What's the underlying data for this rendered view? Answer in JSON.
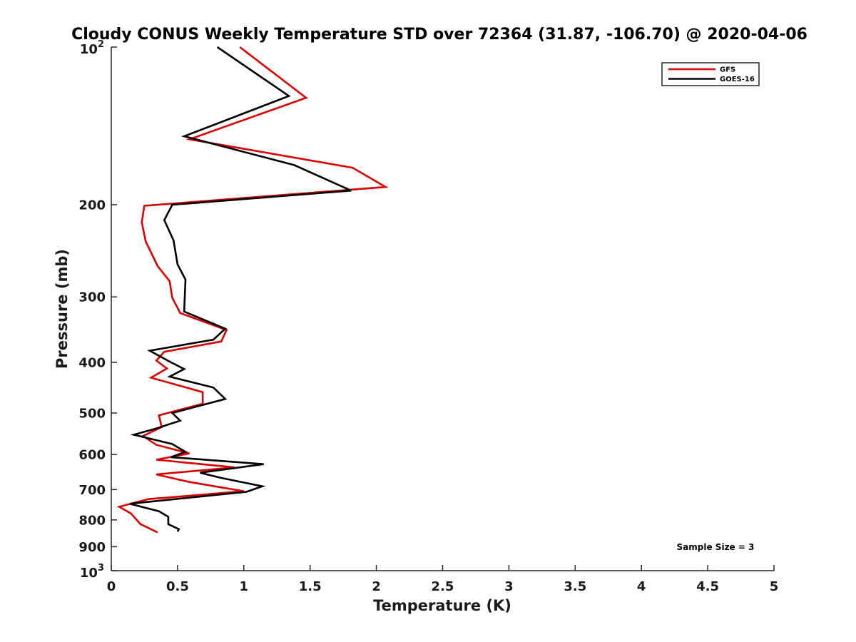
{
  "colors": {
    "gfs": "#dd0000",
    "goes": "#000000",
    "axis": "#262626"
  },
  "chart_data": {
    "type": "line",
    "title": "Cloudy CONUS Weekly Temperature STD over 72364 (31.87, -106.70) @ 2020-04-06",
    "xlabel": "Temperature (K)",
    "ylabel": "Pressure (mb)",
    "xlim": [
      0,
      5
    ],
    "ylim": [
      100,
      1000
    ],
    "y_scale": "log",
    "y_reversed": true,
    "grid": false,
    "legend_position": "top-right",
    "x_ticks": [
      0,
      0.5,
      1,
      1.5,
      2,
      2.5,
      3,
      3.5,
      4,
      4.5,
      5
    ],
    "x_tick_labels": [
      "0",
      "0.5",
      "1",
      "1.5",
      "2",
      "2.5",
      "3",
      "3.5",
      "4",
      "4.5",
      "5"
    ],
    "y_ticks": [
      200,
      300,
      400,
      500,
      600,
      700,
      800,
      900
    ],
    "y_tick_labels": [
      "200",
      "300",
      "400",
      "500",
      "600",
      "700",
      "800",
      "900"
    ],
    "y_decade_labels": [
      {
        "value": 100,
        "base": "10",
        "exp": "2"
      },
      {
        "value": 1000,
        "base": "10",
        "exp": "3"
      }
    ],
    "annotation": "Sample Size = 3",
    "series": [
      {
        "name": "GFS",
        "color": "#dd0000",
        "x": [
          0.97,
          1.47,
          0.59,
          1.82,
          2.07,
          0.25,
          0.23,
          0.26,
          0.35,
          0.44,
          0.46,
          0.52,
          0.87,
          0.83,
          0.4,
          0.34,
          0.42,
          0.3,
          0.69,
          0.69,
          0.36,
          0.38,
          0.24,
          0.34,
          0.59,
          0.34,
          0.93,
          0.34,
          0.59,
          1.0,
          0.28,
          0.06,
          0.15,
          0.22,
          0.35
        ],
        "y": [
          100,
          125,
          150,
          170,
          185,
          201,
          216,
          235,
          262,
          280,
          301,
          322,
          347,
          365,
          382,
          397,
          411,
          428,
          456,
          480,
          505,
          532,
          553,
          575,
          597,
          614,
          635,
          655,
          677,
          705,
          730,
          755,
          778,
          815,
          845
        ]
      },
      {
        "name": "GOES-16",
        "color": "#000000",
        "x": [
          0.8,
          1.34,
          0.55,
          1.38,
          1.81,
          0.46,
          0.4,
          0.47,
          0.5,
          0.56,
          0.55,
          0.86,
          0.77,
          0.29,
          0.45,
          0.55,
          0.44,
          0.77,
          0.86,
          0.46,
          0.52,
          0.34,
          0.17,
          0.46,
          0.56,
          0.45,
          1.15,
          0.67,
          0.83,
          1.14,
          1.02,
          0.14,
          0.36,
          0.43,
          0.43,
          0.51,
          0.5
        ],
        "y": [
          100,
          124,
          148,
          168,
          188,
          200,
          214,
          234,
          260,
          278,
          320,
          345,
          362,
          380,
          400,
          412,
          426,
          447,
          470,
          500,
          517,
          535,
          550,
          573,
          593,
          607,
          626,
          650,
          665,
          690,
          707,
          745,
          770,
          789,
          815,
          833,
          842
        ]
      }
    ]
  }
}
